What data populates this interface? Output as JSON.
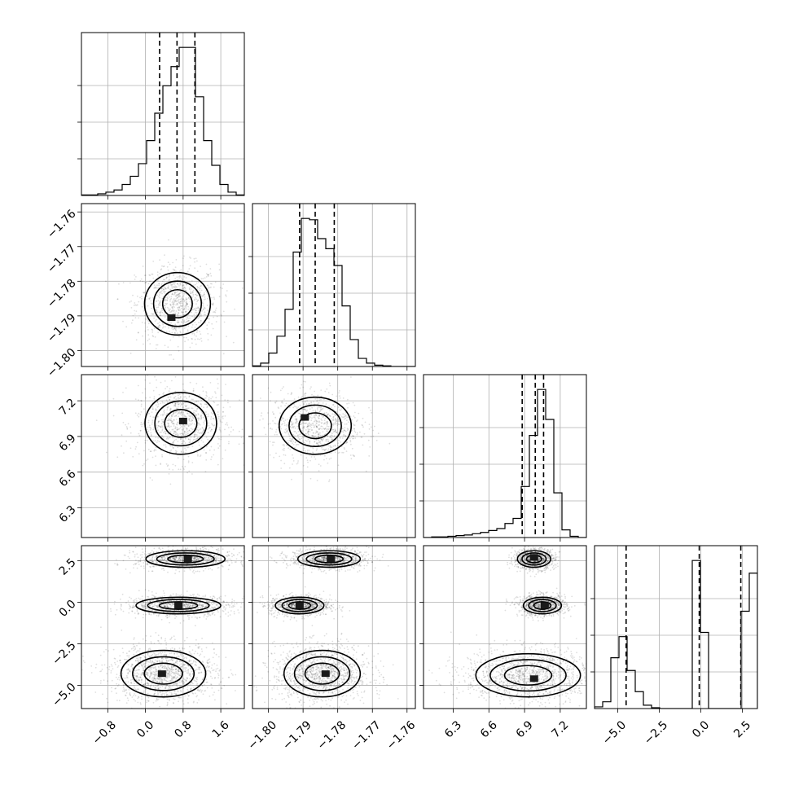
{
  "chart_data": {
    "type": "corner",
    "title": "",
    "colors": {
      "ink": "#000000",
      "grid": "#b0b0b0",
      "background": "#ffffff"
    },
    "params": [
      {
        "id": "p0",
        "label": "",
        "range": [
          -1.36,
          2.1
        ],
        "ticks": [
          -0.8,
          0.0,
          0.8,
          1.6
        ],
        "tick_labels": [
          "−0.8",
          "0.0",
          "0.8",
          "1.6"
        ],
        "quantiles": [
          0.3,
          0.67,
          1.05
        ],
        "hist_edges": [
          -1.36,
          -1.187,
          -1.014,
          -0.841,
          -0.668,
          -0.495,
          -0.322,
          -0.149,
          0.024,
          0.197,
          0.37,
          0.543,
          0.716,
          0.889,
          1.062,
          1.235,
          1.408,
          1.581,
          1.754,
          1.927,
          2.1
        ],
        "hist_counts": [
          1,
          1,
          3,
          6,
          10,
          20,
          35,
          58,
          100,
          150,
          200,
          235,
          270,
          270,
          180,
          100,
          55,
          20,
          6,
          1
        ]
      },
      {
        "id": "p1",
        "label": "",
        "range": [
          -1.8046,
          -1.7576
        ],
        "ticks": [
          -1.8,
          -1.79,
          -1.78,
          -1.77,
          -1.76
        ],
        "tick_labels": [
          "−1.80",
          "−1.79",
          "−1.78",
          "−1.77",
          "−1.76"
        ],
        "quantiles": [
          -1.791,
          -1.7865,
          -1.781
        ],
        "hist_edges": [
          -1.8046,
          -1.80225,
          -1.7999,
          -1.79755,
          -1.7952,
          -1.79285,
          -1.7905,
          -1.78815,
          -1.7858,
          -1.78345,
          -1.7811,
          -1.77875,
          -1.7764,
          -1.77405,
          -1.7717,
          -1.76935,
          -1.767,
          -1.76465,
          -1.7623,
          -1.75995,
          -1.7576
        ],
        "hist_counts": [
          1,
          5,
          20,
          45,
          85,
          170,
          220,
          218,
          190,
          175,
          150,
          90,
          40,
          12,
          5,
          2,
          1,
          0,
          0,
          0
        ]
      },
      {
        "id": "p2",
        "label": "",
        "range": [
          6.05,
          7.42
        ],
        "ticks": [
          6.3,
          6.6,
          6.9,
          7.2
        ],
        "tick_labels": [
          "6.3",
          "6.6",
          "6.9",
          "7.2"
        ],
        "quantiles": [
          6.88,
          6.99,
          7.06
        ],
        "hist_edges": [
          6.05,
          6.1185,
          6.187,
          6.2555,
          6.324,
          6.3925,
          6.461,
          6.5295,
          6.598,
          6.6665,
          6.735,
          6.8035,
          6.872,
          6.9405,
          7.009,
          7.0775,
          7.146,
          7.2145,
          7.283,
          7.3515,
          7.42
        ],
        "hist_counts": [
          0,
          1,
          1,
          2,
          3,
          4,
          6,
          8,
          11,
          14,
          22,
          30,
          80,
          160,
          232,
          185,
          70,
          12,
          2,
          0
        ]
      },
      {
        "id": "p3",
        "label": "",
        "range": [
          -6.4,
          3.4
        ],
        "ticks": [
          -5.0,
          -2.5,
          0.0,
          2.5
        ],
        "tick_labels": [
          "−5.0",
          "−2.5",
          "0.0",
          "2.5"
        ],
        "quantiles": [
          -4.5,
          -0.1,
          2.4
        ],
        "hist_edges": [
          -6.4,
          -5.91,
          -5.42,
          -4.93,
          -4.44,
          -3.95,
          -3.46,
          -2.97,
          -2.48,
          -1.99,
          -1.5,
          -1.01,
          -0.52,
          -0.03,
          0.46,
          0.95,
          1.44,
          1.93,
          2.42,
          2.91,
          3.4
        ],
        "hist_counts": [
          2,
          8,
          60,
          85,
          45,
          20,
          4,
          1,
          0,
          0,
          0,
          0,
          175,
          90,
          0,
          0,
          0,
          0,
          115,
          160
        ]
      }
    ],
    "pairs": [
      {
        "x": "p0",
        "y": "p1",
        "blobs": [
          {
            "cx": 0.68,
            "cy": -1.7865,
            "sx": 0.35,
            "sy": 0.0045,
            "peak_x": 0.55,
            "peak_y": -1.7905
          }
        ]
      },
      {
        "x": "p0",
        "y": "p2",
        "blobs": [
          {
            "cx": 0.75,
            "cy": 7.01,
            "sx": 0.38,
            "sy": 0.13,
            "peak_x": 0.8,
            "peak_y": 7.03
          }
        ]
      },
      {
        "x": "p1",
        "y": "p2",
        "blobs": [
          {
            "cx": -1.7865,
            "cy": 6.99,
            "sx": 0.0052,
            "sy": 0.12,
            "peak_x": -1.7895,
            "peak_y": 7.06
          }
        ]
      },
      {
        "x": "p0",
        "y": "p3",
        "blobs": [
          {
            "cx": 0.85,
            "cy": 2.6,
            "sx": 0.42,
            "sy": 0.25,
            "peak_x": 0.9,
            "peak_y": 2.6
          },
          {
            "cx": 0.7,
            "cy": -0.2,
            "sx": 0.45,
            "sy": 0.25,
            "peak_x": 0.7,
            "peak_y": -0.2
          },
          {
            "cx": 0.38,
            "cy": -4.3,
            "sx": 0.45,
            "sy": 0.7,
            "peak_x": 0.35,
            "peak_y": -4.3
          }
        ]
      },
      {
        "x": "p1",
        "y": "p3",
        "blobs": [
          {
            "cx": -1.7825,
            "cy": 2.6,
            "sx": 0.0045,
            "sy": 0.25,
            "peak_x": -1.782,
            "peak_y": 2.6
          },
          {
            "cx": -1.791,
            "cy": -0.2,
            "sx": 0.0035,
            "sy": 0.25,
            "peak_x": -1.791,
            "peak_y": -0.2
          },
          {
            "cx": -1.7845,
            "cy": -4.3,
            "sx": 0.0055,
            "sy": 0.7,
            "peak_x": -1.7835,
            "peak_y": -4.3
          }
        ]
      },
      {
        "x": "p2",
        "y": "p3",
        "blobs": [
          {
            "cx": 6.98,
            "cy": 2.6,
            "sx": 0.07,
            "sy": 0.25,
            "peak_x": 6.98,
            "peak_y": 2.7
          },
          {
            "cx": 7.05,
            "cy": -0.2,
            "sx": 0.08,
            "sy": 0.25,
            "peak_x": 7.07,
            "peak_y": -0.2
          },
          {
            "cx": 6.93,
            "cy": -4.4,
            "sx": 0.22,
            "sy": 0.65,
            "peak_x": 6.98,
            "peak_y": -4.6
          }
        ]
      }
    ]
  }
}
